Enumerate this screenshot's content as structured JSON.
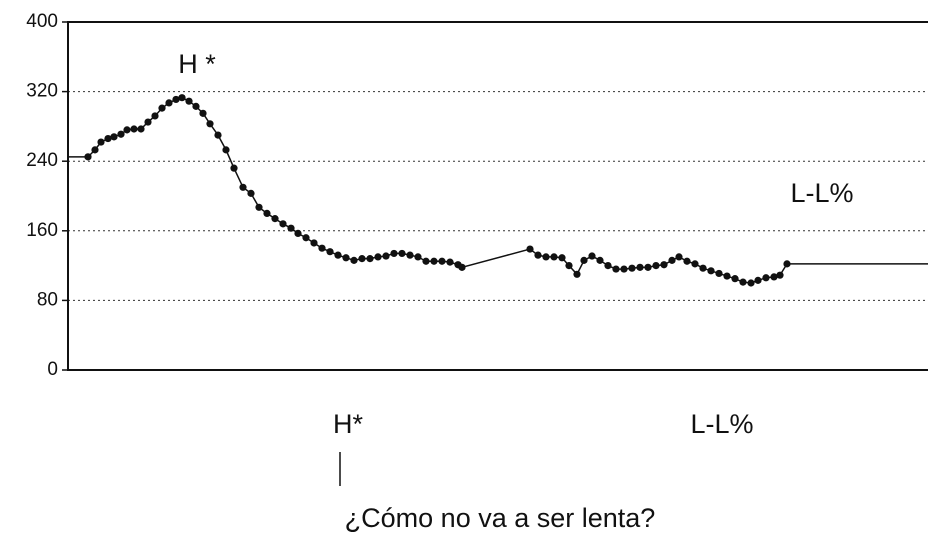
{
  "chart_data": {
    "type": "line",
    "annotations": [
      "H *",
      "L-L%",
      "H*",
      "L-L%",
      "¿Cómo no va a ser lenta?"
    ],
    "ylim": [
      0,
      400
    ],
    "yticks": [
      0,
      80,
      160,
      240,
      320,
      400
    ],
    "xlim": [
      0,
      860
    ],
    "grid": true,
    "color": "#111",
    "series": [
      {
        "markers": true,
        "x": [
          20,
          27,
          33,
          40,
          46,
          53,
          59,
          66,
          73,
          80,
          87,
          94,
          101,
          108,
          114,
          121,
          128,
          135,
          142,
          150,
          158,
          166,
          175,
          183,
          191,
          199,
          207,
          215,
          223,
          230,
          238,
          246,
          254,
          262,
          270,
          278,
          286,
          294,
          302,
          310,
          318,
          326,
          334,
          342,
          350,
          358,
          366,
          374,
          382,
          390,
          394,
          462,
          470,
          478,
          486,
          494,
          501,
          509,
          516,
          524,
          532,
          540,
          548,
          556,
          564,
          572,
          580,
          588,
          596,
          604,
          611,
          619,
          627,
          635,
          643,
          651,
          659,
          667,
          675,
          683,
          690,
          698,
          706,
          712,
          719
        ],
        "values": [
          245,
          253,
          262,
          266,
          268,
          271,
          276,
          277,
          277,
          285,
          292,
          301,
          307,
          311,
          313,
          309,
          303,
          295,
          283,
          270,
          253,
          232,
          210,
          203,
          187,
          180,
          174,
          168,
          163,
          157,
          152,
          146,
          140,
          136,
          132,
          129,
          126,
          128,
          128,
          130,
          131,
          134,
          134,
          132,
          130,
          125,
          125,
          125,
          124,
          121,
          118,
          139,
          132,
          130,
          130,
          129,
          120,
          110,
          126,
          131,
          126,
          120,
          116,
          116,
          117,
          118,
          118,
          120,
          121,
          126,
          130,
          125,
          122,
          117,
          114,
          111,
          108,
          105,
          101,
          100,
          103,
          106,
          107,
          109,
          122
        ]
      },
      {
        "markers": false,
        "x": [
          0,
          20
        ],
        "values": [
          245,
          245
        ]
      },
      {
        "markers": false,
        "x": [
          719,
          860
        ],
        "values": [
          122,
          122
        ]
      }
    ]
  }
}
